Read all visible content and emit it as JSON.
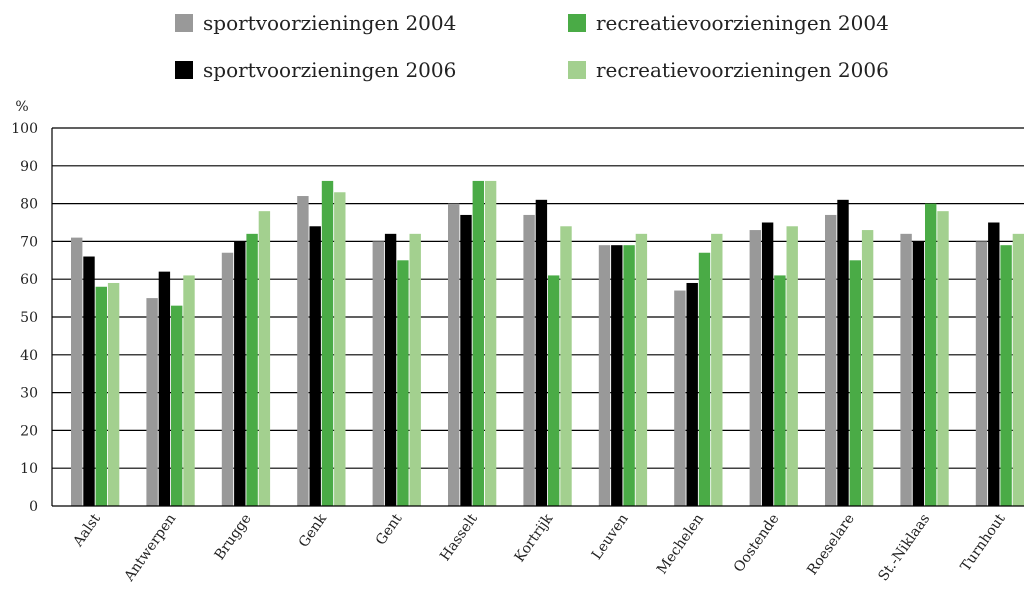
{
  "chart_data": {
    "type": "bar",
    "title": "",
    "xlabel": "",
    "ylabel": "%",
    "ylim": [
      0,
      100
    ],
    "yticks": [
      0,
      10,
      20,
      30,
      40,
      50,
      60,
      70,
      80,
      90,
      100
    ],
    "grid": true,
    "legend_position": "top",
    "categories": [
      "Aalst",
      "Antwerpen",
      "Brugge",
      "Genk",
      "Gent",
      "Hasselt",
      "Kortrijk",
      "Leuven",
      "Mechelen",
      "Oostende",
      "Roeselare",
      "St.-Niklaas",
      "Turnhout"
    ],
    "series": [
      {
        "name": "sportvoorzieningen 2004",
        "color": "#999999",
        "values": [
          71,
          55,
          67,
          82,
          70,
          80,
          77,
          69,
          57,
          73,
          77,
          72,
          70
        ]
      },
      {
        "name": "sportvoorzieningen 2006",
        "color": "#000000",
        "values": [
          66,
          62,
          70,
          74,
          72,
          77,
          81,
          69,
          59,
          75,
          81,
          70,
          75
        ]
      },
      {
        "name": "recreatievoorzieningen 2004",
        "color": "#4aab46",
        "values": [
          58,
          53,
          72,
          86,
          65,
          86,
          61,
          69,
          67,
          61,
          65,
          80,
          69
        ]
      },
      {
        "name": "recreatievoorzieningen 2006",
        "color": "#a3d08f",
        "values": [
          59,
          61,
          78,
          83,
          72,
          86,
          74,
          72,
          72,
          74,
          73,
          78,
          72
        ]
      }
    ]
  }
}
